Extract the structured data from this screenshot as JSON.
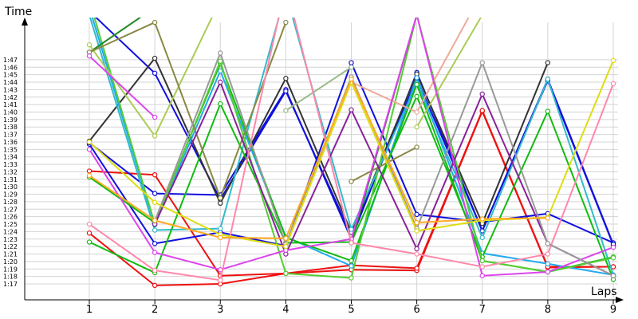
{
  "chart_data": {
    "type": "line",
    "ylabel": "Time",
    "xlabel": "Laps",
    "x": [
      1,
      2,
      3,
      4,
      5,
      6,
      7,
      8,
      9
    ],
    "x_tick_labels": [
      "1",
      "2",
      "3",
      "4",
      "5",
      "6",
      "7",
      "8",
      "9"
    ],
    "y_tick_labels": [
      "1:17",
      "1:18",
      "1:19",
      "1:20",
      "1:21",
      "1:22",
      "1:23",
      "1:24",
      "1:25",
      "1:26",
      "1:27",
      "1:28",
      "1:29",
      "1:30",
      "1:31",
      "1:32",
      "1:33",
      "1:34",
      "1:35",
      "1:36",
      "1:37",
      "1:38",
      "1:39",
      "1:40",
      "1:41",
      "1:42",
      "1:43",
      "1:44",
      "1:45",
      "1:46",
      "1:47"
    ],
    "ylim": [
      "1:16",
      "1:52"
    ],
    "grid": true,
    "series": [
      {
        "color": "#ee1111",
        "values": [
          "1:23.8",
          "1:16.8",
          "1:17.0",
          "1:18.4",
          "1:18.9",
          "1:18.8",
          "1:40.1",
          "1:19.2",
          "1:19.3"
        ]
      },
      {
        "color": "#ee1111",
        "values": [
          "1:32.1",
          "1:31.6",
          "1:18.1",
          "1:18.4",
          "1:19.5",
          "1:19.1",
          "1:40.2",
          "1:19.3",
          "1:19.3"
        ]
      },
      {
        "color": "#1111dd",
        "values": [
          "1:35.7",
          "1:22.4",
          "1:23.9",
          "1:22.1",
          "1:46.6",
          "1:26.3",
          "1:25.3",
          "1:26.4",
          "1:22.5"
        ]
      },
      {
        "color": "#1111dd",
        "values": [
          "1:35.9",
          "1:29.1",
          "1:28.9",
          "1:43.0",
          "1:23.0",
          "1:45.3",
          "1:24.1",
          "1:44.2",
          "1:22.2"
        ]
      },
      {
        "color": "#1111dd",
        "values": [
          "1:53.5",
          "1:45.2",
          "1:28.3",
          "1:42.8",
          "1:23.5",
          "1:44.5",
          "1:24.1",
          "1:44.4",
          "1:22.3"
        ]
      },
      {
        "color": "#333333",
        "values": [
          "1:36.1",
          "1:47.2",
          "1:27.8",
          "1:44.5",
          "1:23.9",
          "1:45.1",
          "1:25.1",
          "1:46.6",
          null
        ]
      },
      {
        "color": "#33bbcc",
        "values": [
          "1:53.0",
          "1:24.2",
          "1:24.4",
          "1:56.0",
          "1:24.3",
          "1:43.9",
          "1:23.2",
          "1:44.4",
          "1:18.2"
        ]
      },
      {
        "color": "#22aaee",
        "values": [
          "1:54.0",
          "1:24.9",
          "1:45.5",
          "1:23.3",
          "1:19.4",
          "1:44.6",
          "1:21.1",
          "1:19.7",
          "1:18.2"
        ]
      },
      {
        "color": "#11bb11",
        "values": [
          "1:22.6",
          "1:18.5",
          "1:41.1",
          "1:22.5",
          "1:22.6",
          "1:42.1",
          "1:20.6",
          "1:40.1",
          "1:17.6"
        ]
      },
      {
        "color": "#11bb11",
        "values": [
          "1:31.3",
          "1:25.2",
          "1:46.5",
          "1:23.2",
          "1:20.1",
          "1:43.7",
          "1:20.1",
          "1:18.6",
          "1:20.6"
        ]
      },
      {
        "color": "#55cc33",
        "values": [
          "1:55.0",
          "1:25.0",
          "1:46.8",
          "1:18.4",
          "1:17.8",
          "1:53.0",
          "1:20.1",
          "1:18.6",
          "1:20.5"
        ]
      },
      {
        "color": "#228822",
        "values": [
          "1:48.0",
          "1:54.0",
          null,
          null,
          null,
          null,
          null,
          null,
          null
        ]
      },
      {
        "color": "#228822",
        "values": [
          null,
          null,
          null,
          null,
          "1:22.5",
          "1:53.0",
          null,
          null,
          null
        ]
      },
      {
        "color": "#aacc55",
        "values": [
          "1:49.0",
          "1:36.8",
          "1:55.0",
          null,
          null,
          null,
          null,
          null,
          null
        ]
      },
      {
        "color": "#aacc55",
        "values": [
          null,
          null,
          null,
          null,
          null,
          "1:38.0",
          "1:53.0",
          null,
          null
        ]
      },
      {
        "color": "#888844",
        "values": [
          "1:48.0",
          "1:52.0",
          "1:28.5",
          "1:52.0",
          null,
          null,
          null,
          null,
          null
        ]
      },
      {
        "color": "#888844",
        "values": [
          null,
          null,
          null,
          null,
          "1:30.7",
          "1:35.3",
          null,
          null,
          null
        ]
      },
      {
        "color": "#99bb88",
        "values": [
          null,
          null,
          null,
          "1:40.2",
          "1:46.0",
          null,
          null,
          null,
          null
        ]
      },
      {
        "color": "#eeaa99",
        "values": [
          null,
          null,
          null,
          null,
          "1:44.0",
          "1:40.0",
          "1:56.0",
          null,
          null
        ]
      },
      {
        "color": "#882299",
        "values": [
          null,
          "1:25.0",
          "1:44.0",
          "1:21.0",
          "1:40.3",
          "1:21.7",
          "1:42.4",
          "1:22.4",
          "1:18.1"
        ]
      },
      {
        "color": "#dd44ee",
        "values": [
          "1:35.0",
          "1:21.2",
          "1:18.9",
          "1:21.5",
          "1:23.0",
          "1:53.0",
          "1:18.1",
          "1:18.6",
          "1:21.9"
        ]
      },
      {
        "color": "#dd44ee",
        "values": [
          "1:47.5",
          "1:39.3",
          null,
          null,
          null,
          null,
          null,
          null,
          null
        ]
      },
      {
        "color": "#ff88aa",
        "values": [
          "1:25.0",
          "1:18.8",
          "1:17.5",
          "1:57.0",
          "1:22.5",
          "1:21.0",
          "1:19.3",
          "1:21.0",
          "1:43.8"
        ]
      },
      {
        "color": "#999999",
        "values": [
          null,
          "1:25.4",
          "1:47.9",
          "1:22.3",
          "1:44.7",
          "1:24.4",
          "1:46.6",
          "1:22.4",
          "1:18.1"
        ]
      },
      {
        "color": "#dddd11",
        "values": [
          "1:36.0",
          "1:27.9",
          "1:23.6",
          "1:22.0",
          "1:44.0",
          "1:24.1",
          "1:25.5",
          "1:25.9",
          "1:46.9"
        ]
      },
      {
        "color": "#ffaa22",
        "values": [
          "1:31.5",
          "1:25.5",
          "1:23.2",
          "1:23.1",
          "1:44.4",
          "1:25.2",
          "1:25.7",
          "1:25.8",
          null
        ]
      }
    ]
  }
}
